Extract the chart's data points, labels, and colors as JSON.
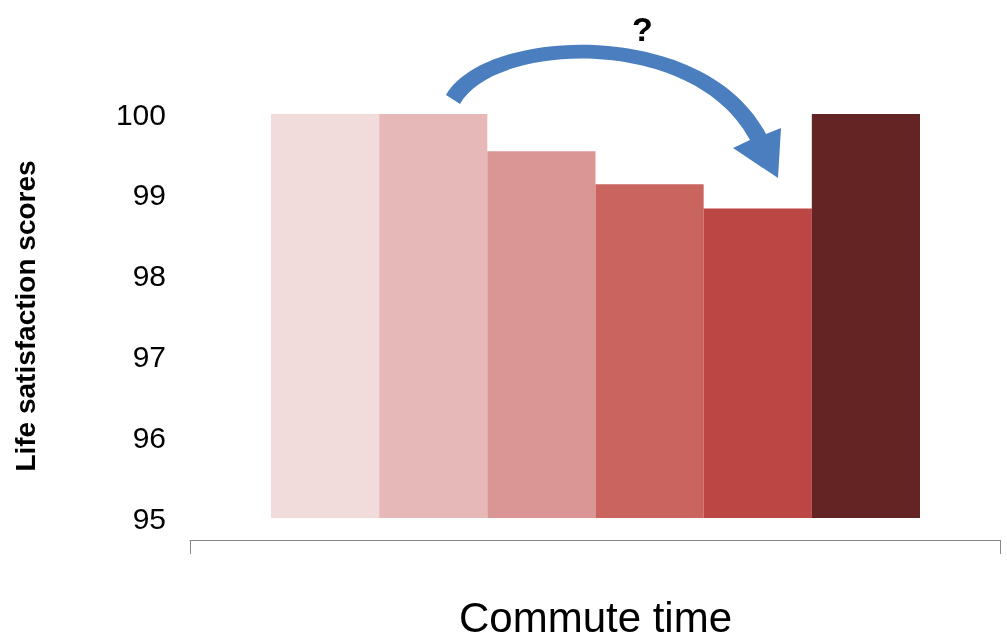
{
  "chart_data": {
    "type": "bar",
    "ylabel": "Life satisfaction scores",
    "xlabel": "Commute time",
    "categories": [
      null,
      null,
      null,
      null,
      null,
      null
    ],
    "values": [
      100,
      100,
      99.54,
      99.13,
      98.83,
      100
    ],
    "colors": [
      "#f2dcdb",
      "#e6b9b8",
      "#d99694",
      "#c9645f",
      "#bb4644",
      "#632423"
    ],
    "ylim": [
      95,
      100
    ],
    "yticks": [
      95,
      96,
      97,
      98,
      99,
      100
    ],
    "grid": false,
    "annotations": [
      "?"
    ]
  }
}
